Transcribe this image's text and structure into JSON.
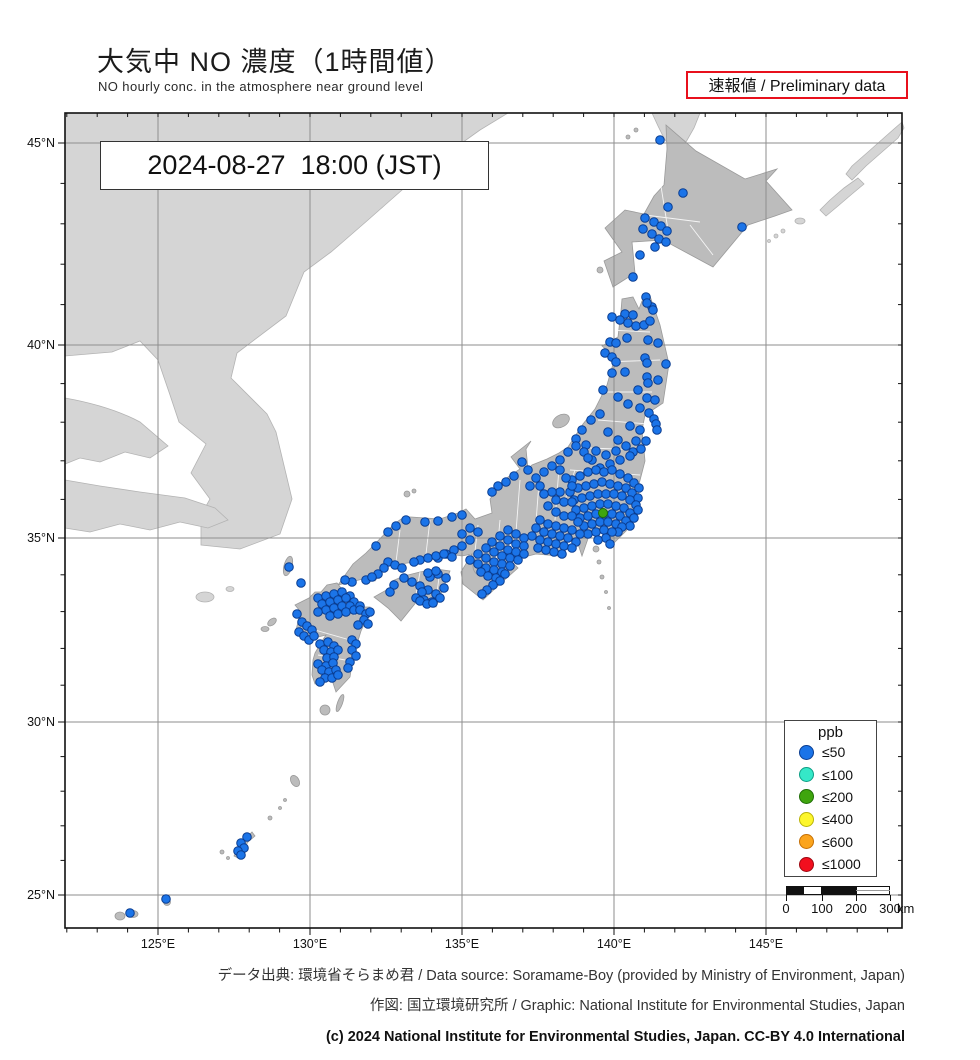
{
  "header": {
    "title_ja": "大気中 NO 濃度（1時間値）",
    "title_en": "NO hourly conc. in the atmosphere near ground level",
    "preliminary": "速報値 / Preliminary data"
  },
  "timestamp": "2024-08-27  18:00 (JST)",
  "axes": {
    "lon": {
      "labels": [
        "125°E",
        "130°E",
        "135°E",
        "140°E",
        "145°E"
      ],
      "x": [
        158,
        310,
        462,
        614,
        766
      ]
    },
    "lat": {
      "labels": [
        "45°N",
        "40°N",
        "35°N",
        "30°N",
        "25°N"
      ],
      "y": [
        143,
        345,
        538,
        722,
        895
      ]
    }
  },
  "legend": {
    "title": "ppb",
    "items": [
      {
        "label": "≤50",
        "fill": "#1b74e8",
        "stroke": "#0a3d91"
      },
      {
        "label": "≤100",
        "fill": "#35e8c8",
        "stroke": "#0d9e85"
      },
      {
        "label": "≤200",
        "fill": "#3fa50e",
        "stroke": "#1e6d06"
      },
      {
        "label": "≤400",
        "fill": "#fdf62c",
        "stroke": "#b9b307"
      },
      {
        "label": "≤600",
        "fill": "#fba41d",
        "stroke": "#c56f04"
      },
      {
        "label": "≤1000",
        "fill": "#f20f1e",
        "stroke": "#9e0710"
      }
    ]
  },
  "scale_bar": {
    "tick_labels": [
      "0",
      "100",
      "200",
      "300"
    ],
    "unit": "km"
  },
  "map": {
    "stations": {
      "blue": [
        [
          660,
          140
        ],
        [
          683,
          193
        ],
        [
          668,
          207
        ],
        [
          645,
          218
        ],
        [
          654,
          222
        ],
        [
          661,
          226
        ],
        [
          667,
          231
        ],
        [
          643,
          229
        ],
        [
          652,
          234
        ],
        [
          659,
          239
        ],
        [
          666,
          242
        ],
        [
          655,
          247
        ],
        [
          640,
          255
        ],
        [
          742,
          227
        ],
        [
          633,
          277
        ],
        [
          646,
          297
        ],
        [
          652,
          307
        ],
        [
          647,
          303
        ],
        [
          653,
          310
        ],
        [
          625,
          314
        ],
        [
          633,
          315
        ],
        [
          612,
          317
        ],
        [
          620,
          320
        ],
        [
          628,
          323
        ],
        [
          636,
          326
        ],
        [
          644,
          325
        ],
        [
          650,
          321
        ],
        [
          610,
          342
        ],
        [
          616,
          343
        ],
        [
          627,
          338
        ],
        [
          648,
          340
        ],
        [
          658,
          343
        ],
        [
          605,
          353
        ],
        [
          612,
          357
        ],
        [
          616,
          362
        ],
        [
          645,
          358
        ],
        [
          647,
          363
        ],
        [
          666,
          364
        ],
        [
          612,
          373
        ],
        [
          625,
          372
        ],
        [
          647,
          377
        ],
        [
          648,
          383
        ],
        [
          658,
          380
        ],
        [
          603,
          390
        ],
        [
          618,
          397
        ],
        [
          638,
          390
        ],
        [
          647,
          398
        ],
        [
          655,
          400
        ],
        [
          628,
          404
        ],
        [
          640,
          408
        ],
        [
          649,
          413
        ],
        [
          654,
          419
        ],
        [
          656,
          424
        ],
        [
          657,
          430
        ],
        [
          640,
          430
        ],
        [
          630,
          426
        ],
        [
          600,
          414
        ],
        [
          591,
          420
        ],
        [
          582,
          430
        ],
        [
          576,
          439
        ],
        [
          586,
          445
        ],
        [
          596,
          451
        ],
        [
          618,
          440
        ],
        [
          608,
          432
        ],
        [
          606,
          455
        ],
        [
          616,
          451
        ],
        [
          626,
          446
        ],
        [
          636,
          441
        ],
        [
          646,
          441
        ],
        [
          641,
          449
        ],
        [
          633,
          452
        ],
        [
          630,
          456
        ],
        [
          620,
          460
        ],
        [
          610,
          464
        ],
        [
          600,
          468
        ],
        [
          592,
          460
        ],
        [
          584,
          452
        ],
        [
          576,
          446
        ],
        [
          568,
          452
        ],
        [
          588,
          458
        ],
        [
          572,
          480
        ],
        [
          580,
          476
        ],
        [
          588,
          472
        ],
        [
          596,
          470
        ],
        [
          604,
          472
        ],
        [
          612,
          470
        ],
        [
          620,
          474
        ],
        [
          628,
          478
        ],
        [
          634,
          483
        ],
        [
          639,
          488
        ],
        [
          570,
          492
        ],
        [
          578,
          488
        ],
        [
          586,
          486
        ],
        [
          594,
          484
        ],
        [
          602,
          482
        ],
        [
          610,
          484
        ],
        [
          618,
          486
        ],
        [
          626,
          488
        ],
        [
          632,
          493
        ],
        [
          638,
          498
        ],
        [
          574,
          500
        ],
        [
          582,
          498
        ],
        [
          590,
          496
        ],
        [
          598,
          494
        ],
        [
          606,
          494
        ],
        [
          614,
          494
        ],
        [
          622,
          496
        ],
        [
          630,
          500
        ],
        [
          636,
          505
        ],
        [
          638,
          510
        ],
        [
          576,
          510
        ],
        [
          584,
          508
        ],
        [
          592,
          506
        ],
        [
          600,
          504
        ],
        [
          608,
          504
        ],
        [
          616,
          506
        ],
        [
          624,
          508
        ],
        [
          630,
          513
        ],
        [
          634,
          518
        ],
        [
          580,
          518
        ],
        [
          588,
          516
        ],
        [
          596,
          514
        ],
        [
          604,
          514
        ],
        [
          612,
          514
        ],
        [
          620,
          516
        ],
        [
          626,
          521
        ],
        [
          630,
          526
        ],
        [
          584,
          526
        ],
        [
          592,
          524
        ],
        [
          600,
          522
        ],
        [
          608,
          522
        ],
        [
          616,
          524
        ],
        [
          622,
          527
        ],
        [
          618,
          532
        ],
        [
          588,
          534
        ],
        [
          596,
          532
        ],
        [
          604,
          530
        ],
        [
          612,
          532
        ],
        [
          606,
          538
        ],
        [
          598,
          540
        ],
        [
          610,
          544
        ],
        [
          560,
          460
        ],
        [
          552,
          466
        ],
        [
          544,
          472
        ],
        [
          536,
          478
        ],
        [
          528,
          470
        ],
        [
          522,
          462
        ],
        [
          514,
          476
        ],
        [
          506,
          482
        ],
        [
          498,
          486
        ],
        [
          492,
          492
        ],
        [
          530,
          486
        ],
        [
          540,
          486
        ],
        [
          560,
          470
        ],
        [
          566,
          478
        ],
        [
          572,
          486
        ],
        [
          560,
          492
        ],
        [
          552,
          492
        ],
        [
          544,
          494
        ],
        [
          556,
          500
        ],
        [
          564,
          502
        ],
        [
          572,
          502
        ],
        [
          548,
          506
        ],
        [
          556,
          512
        ],
        [
          564,
          516
        ],
        [
          572,
          516
        ],
        [
          578,
          522
        ],
        [
          540,
          520
        ],
        [
          548,
          524
        ],
        [
          556,
          526
        ],
        [
          564,
          528
        ],
        [
          572,
          530
        ],
        [
          580,
          534
        ],
        [
          536,
          528
        ],
        [
          544,
          532
        ],
        [
          552,
          534
        ],
        [
          560,
          536
        ],
        [
          568,
          538
        ],
        [
          576,
          542
        ],
        [
          532,
          536
        ],
        [
          540,
          540
        ],
        [
          548,
          542
        ],
        [
          556,
          544
        ],
        [
          564,
          546
        ],
        [
          572,
          548
        ],
        [
          538,
          548
        ],
        [
          546,
          550
        ],
        [
          554,
          552
        ],
        [
          562,
          554
        ],
        [
          508,
          530
        ],
        [
          516,
          534
        ],
        [
          524,
          538
        ],
        [
          500,
          536
        ],
        [
          508,
          540
        ],
        [
          516,
          544
        ],
        [
          524,
          546
        ],
        [
          492,
          542
        ],
        [
          500,
          546
        ],
        [
          508,
          550
        ],
        [
          516,
          552
        ],
        [
          524,
          554
        ],
        [
          486,
          548
        ],
        [
          494,
          552
        ],
        [
          502,
          556
        ],
        [
          510,
          558
        ],
        [
          518,
          560
        ],
        [
          478,
          554
        ],
        [
          486,
          558
        ],
        [
          494,
          562
        ],
        [
          502,
          564
        ],
        [
          510,
          566
        ],
        [
          470,
          560
        ],
        [
          478,
          564
        ],
        [
          486,
          568
        ],
        [
          494,
          570
        ],
        [
          502,
          572
        ],
        [
          481,
          572
        ],
        [
          488,
          576
        ],
        [
          496,
          578
        ],
        [
          500,
          581
        ],
        [
          493,
          585
        ],
        [
          487,
          590
        ],
        [
          505,
          574
        ],
        [
          482,
          594
        ],
        [
          470,
          528
        ],
        [
          478,
          532
        ],
        [
          462,
          534
        ],
        [
          470,
          540
        ],
        [
          462,
          546
        ],
        [
          454,
          550
        ],
        [
          446,
          554
        ],
        [
          438,
          558
        ],
        [
          376,
          546
        ],
        [
          388,
          532
        ],
        [
          396,
          526
        ],
        [
          406,
          520
        ],
        [
          425,
          522
        ],
        [
          438,
          521
        ],
        [
          452,
          517
        ],
        [
          462,
          515
        ],
        [
          420,
          560
        ],
        [
          428,
          558
        ],
        [
          436,
          556
        ],
        [
          444,
          554
        ],
        [
          452,
          557
        ],
        [
          414,
          562
        ],
        [
          388,
          562
        ],
        [
          395,
          565
        ],
        [
          402,
          568
        ],
        [
          384,
          568
        ],
        [
          378,
          574
        ],
        [
          366,
          580
        ],
        [
          372,
          577
        ],
        [
          352,
          582
        ],
        [
          345,
          580
        ],
        [
          404,
          578
        ],
        [
          412,
          582
        ],
        [
          420,
          586
        ],
        [
          428,
          590
        ],
        [
          436,
          594
        ],
        [
          444,
          588
        ],
        [
          446,
          578
        ],
        [
          438,
          574
        ],
        [
          430,
          577
        ],
        [
          422,
          592
        ],
        [
          416,
          598
        ],
        [
          424,
          600
        ],
        [
          432,
          602
        ],
        [
          440,
          598
        ],
        [
          394,
          585
        ],
        [
          390,
          592
        ],
        [
          428,
          573
        ],
        [
          436,
          571
        ],
        [
          420,
          601
        ],
        [
          427,
          604
        ],
        [
          433,
          603
        ],
        [
          318,
          598
        ],
        [
          326,
          596
        ],
        [
          334,
          594
        ],
        [
          342,
          592
        ],
        [
          350,
          596
        ],
        [
          322,
          604
        ],
        [
          330,
          602
        ],
        [
          338,
          600
        ],
        [
          346,
          598
        ],
        [
          354,
          602
        ],
        [
          326,
          610
        ],
        [
          334,
          608
        ],
        [
          342,
          606
        ],
        [
          350,
          606
        ],
        [
          318,
          612
        ],
        [
          330,
          616
        ],
        [
          338,
          614
        ],
        [
          346,
          612
        ],
        [
          354,
          610
        ],
        [
          360,
          606
        ],
        [
          360,
          610
        ],
        [
          366,
          614
        ],
        [
          370,
          612
        ],
        [
          364,
          620
        ],
        [
          368,
          624
        ],
        [
          358,
          625
        ],
        [
          302,
          622
        ],
        [
          307,
          626
        ],
        [
          312,
          630
        ],
        [
          299,
          632
        ],
        [
          304,
          636
        ],
        [
          309,
          640
        ],
        [
          314,
          636
        ],
        [
          297,
          614
        ],
        [
          320,
          644
        ],
        [
          328,
          642
        ],
        [
          334,
          646
        ],
        [
          324,
          650
        ],
        [
          331,
          652
        ],
        [
          338,
          650
        ],
        [
          327,
          658
        ],
        [
          334,
          657
        ],
        [
          352,
          640
        ],
        [
          356,
          644
        ],
        [
          352,
          650
        ],
        [
          356,
          656
        ],
        [
          350,
          662
        ],
        [
          348,
          668
        ],
        [
          318,
          664
        ],
        [
          326,
          666
        ],
        [
          333,
          663
        ],
        [
          322,
          670
        ],
        [
          329,
          672
        ],
        [
          336,
          670
        ],
        [
          325,
          678
        ],
        [
          332,
          678
        ],
        [
          320,
          682
        ],
        [
          338,
          675
        ],
        [
          289,
          567
        ],
        [
          301,
          583
        ],
        [
          247,
          837
        ],
        [
          241,
          843
        ],
        [
          244,
          848
        ],
        [
          238,
          851
        ],
        [
          241,
          855
        ],
        [
          166,
          899
        ],
        [
          130,
          913
        ]
      ],
      "green": [
        [
          603,
          513
        ]
      ]
    }
  },
  "footer": {
    "source": "データ出典: 環境省そらまめ君 / Data source: Soramame-Boy (provided by Ministry of Environment, Japan)",
    "graphic": "作図: 国立環境研究所 / Graphic: National Institute for Environmental Studies, Japan",
    "copyright": "(c) 2024 National Institute for Environmental Studies, Japan. CC-BY 4.0 International"
  }
}
